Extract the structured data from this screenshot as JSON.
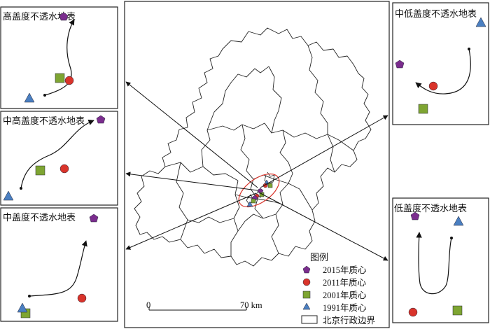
{
  "panels": [
    {
      "id": "high",
      "title": "高盖度不透水地表"
    },
    {
      "id": "mid-high",
      "title": "中高盖度不透水地表"
    },
    {
      "id": "mid",
      "title": "中盖度不透水地表"
    },
    {
      "id": "mid-low",
      "title": "中低盖度不透水地表"
    },
    {
      "id": "low",
      "title": "低盖度不透水地表"
    }
  ],
  "legend": {
    "title": "图例",
    "items": [
      {
        "symbol": "pentagon",
        "label": "2015年质心",
        "color": "#7b2d8e"
      },
      {
        "symbol": "circle",
        "label": "2011年质心",
        "color": "#d9342b"
      },
      {
        "symbol": "square",
        "label": "2001年质心",
        "color": "#7ea532"
      },
      {
        "symbol": "triangle",
        "label": "1991年质心",
        "color": "#4a7fc1"
      },
      {
        "symbol": "boundary",
        "label": "北京行政边界",
        "color": "#ffffff"
      }
    ]
  },
  "scale_bar": {
    "start": "0",
    "end": "70 km"
  },
  "colors": {
    "focus_ellipse": "#d9342b",
    "boundary": "#222222"
  }
}
